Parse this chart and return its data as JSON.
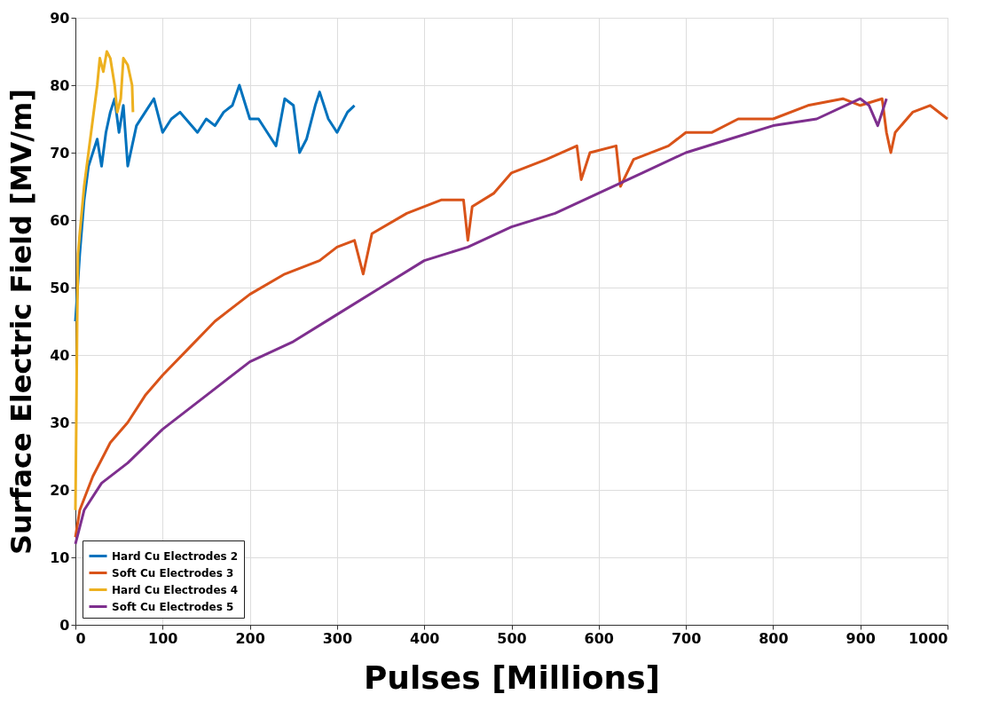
{
  "chart_data": {
    "type": "line",
    "xlabel": "Pulses [Millions]",
    "ylabel": "Surface Electric Field [MV/m]",
    "xlim": [
      0,
      1000
    ],
    "xticks": [
      0,
      100,
      200,
      300,
      400,
      500,
      600,
      700,
      800,
      900,
      1000
    ],
    "ylim": [
      0,
      90
    ],
    "yticks": [
      0,
      10,
      20,
      30,
      40,
      50,
      60,
      70,
      80,
      90
    ],
    "grid": true,
    "legend": "bottom left",
    "marker": "none",
    "line_style": "solid",
    "series": [
      {
        "name": "Hard Cu Electrodes 2",
        "color": "#0072bd",
        "x": [
          0,
          5,
          10,
          15,
          20,
          25,
          30,
          35,
          40,
          45,
          50,
          55,
          60,
          65,
          70,
          80,
          90,
          100,
          110,
          120,
          140,
          150,
          160,
          170,
          180,
          188,
          200,
          210,
          220,
          230,
          240,
          250,
          257,
          265,
          275,
          280,
          290,
          300,
          312,
          320
        ],
        "values": [
          45,
          55,
          63,
          68,
          70,
          72,
          68,
          73,
          76,
          78,
          73,
          77,
          68,
          71,
          74,
          76,
          78,
          73,
          75,
          76,
          73,
          75,
          74,
          76,
          77,
          80,
          75,
          75,
          73,
          71,
          78,
          77,
          70,
          72,
          77,
          79,
          75,
          73,
          76,
          77
        ]
      },
      {
        "name": "Soft  Cu Electrodes 3",
        "color": "#d95319",
        "x": [
          0,
          5,
          20,
          40,
          60,
          80,
          100,
          130,
          160,
          200,
          240,
          280,
          300,
          320,
          330,
          340,
          380,
          420,
          445,
          450,
          455,
          480,
          500,
          540,
          575,
          580,
          590,
          620,
          625,
          640,
          680,
          700,
          730,
          760,
          800,
          840,
          880,
          900,
          925,
          930,
          935,
          940,
          960,
          980,
          1000
        ],
        "values": [
          13,
          17,
          22,
          27,
          30,
          34,
          37,
          41,
          45,
          49,
          52,
          54,
          56,
          57,
          52,
          58,
          61,
          63,
          63,
          57,
          62,
          64,
          67,
          69,
          71,
          66,
          70,
          71,
          65,
          69,
          71,
          73,
          73,
          75,
          75,
          77,
          78,
          77,
          78,
          73,
          70,
          73,
          76,
          77,
          75
        ]
      },
      {
        "name": "Hard Cu Electrodes 4",
        "color": "#edb120",
        "x": [
          0,
          1,
          2,
          3,
          5,
          10,
          15,
          20,
          25,
          28,
          32,
          36,
          40,
          45,
          48,
          52,
          55,
          60,
          65,
          66
        ],
        "values": [
          17,
          30,
          45,
          55,
          58,
          65,
          70,
          75,
          80,
          84,
          82,
          85,
          84,
          80,
          76,
          78,
          84,
          83,
          80,
          76
        ]
      },
      {
        "name": "Soft  Cu Electrodes 5",
        "color": "#7e2f8e",
        "x": [
          0,
          10,
          30,
          60,
          100,
          150,
          200,
          250,
          300,
          350,
          400,
          450,
          500,
          550,
          600,
          650,
          700,
          750,
          800,
          850,
          900,
          910,
          920,
          930
        ],
        "values": [
          12,
          17,
          21,
          24,
          29,
          34,
          39,
          42,
          46,
          50,
          54,
          56,
          59,
          61,
          64,
          67,
          70,
          72,
          74,
          75,
          78,
          77,
          74,
          78
        ]
      }
    ]
  }
}
